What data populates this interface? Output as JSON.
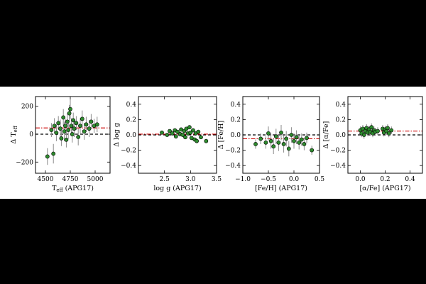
{
  "colors": {
    "background": "#000000",
    "figure_bg": "#ffffff",
    "marker_fill": "#2e8b2e",
    "marker_edge": "#000000",
    "errorbar": "#8a8a8a",
    "zero_line": "#000000",
    "mean_line": "#cc0000"
  },
  "chart_data": [
    {
      "type": "scatter",
      "id": "teff",
      "xlabel": "T_eff (APG17)",
      "ylabel": "Δ T_eff",
      "xlim": [
        4400,
        5150
      ],
      "ylim": [
        -280,
        270
      ],
      "xticks": [
        4500,
        4750,
        5000
      ],
      "xtick_labels": [
        "4500",
        "4750",
        "5000"
      ],
      "yticks": [
        -200,
        0,
        200
      ],
      "ytick_labels": [
        "−200",
        "0",
        "200"
      ],
      "zero_line": 0,
      "mean_offset": 45,
      "points": [
        {
          "x": 4520,
          "y": -160,
          "err": 60
        },
        {
          "x": 4580,
          "y": -140,
          "err": 70
        },
        {
          "x": 4560,
          "y": 30,
          "err": 50
        },
        {
          "x": 4590,
          "y": 60,
          "err": 55
        },
        {
          "x": 4610,
          "y": 10,
          "err": 60
        },
        {
          "x": 4630,
          "y": 80,
          "err": 50
        },
        {
          "x": 4650,
          "y": 40,
          "err": 65
        },
        {
          "x": 4660,
          "y": -30,
          "err": 55
        },
        {
          "x": 4680,
          "y": 120,
          "err": 60
        },
        {
          "x": 4690,
          "y": 20,
          "err": 70
        },
        {
          "x": 4700,
          "y": 60,
          "err": 50
        },
        {
          "x": 4710,
          "y": -40,
          "err": 55
        },
        {
          "x": 4720,
          "y": 90,
          "err": 60
        },
        {
          "x": 4730,
          "y": 30,
          "err": 65
        },
        {
          "x": 4740,
          "y": 150,
          "err": 60
        },
        {
          "x": 4750,
          "y": 180,
          "err": 70
        },
        {
          "x": 4760,
          "y": 60,
          "err": 55
        },
        {
          "x": 4770,
          "y": 0,
          "err": 60
        },
        {
          "x": 4780,
          "y": 100,
          "err": 55
        },
        {
          "x": 4790,
          "y": 40,
          "err": 60
        },
        {
          "x": 4810,
          "y": 80,
          "err": 50
        },
        {
          "x": 4830,
          "y": -20,
          "err": 60
        },
        {
          "x": 4850,
          "y": 60,
          "err": 55
        },
        {
          "x": 4870,
          "y": 110,
          "err": 60
        },
        {
          "x": 4890,
          "y": 20,
          "err": 60
        },
        {
          "x": 4910,
          "y": 70,
          "err": 55
        },
        {
          "x": 4940,
          "y": 40,
          "err": 60
        },
        {
          "x": 4960,
          "y": 90,
          "err": 55
        },
        {
          "x": 4990,
          "y": 60,
          "err": 50
        },
        {
          "x": 5020,
          "y": 70,
          "err": 55
        }
      ]
    },
    {
      "type": "scatter",
      "id": "logg",
      "xlabel": "log g (APG17)",
      "ylabel": "Δ log g",
      "xlim": [
        2.0,
        3.5
      ],
      "ylim": [
        -0.5,
        0.5
      ],
      "xticks": [
        2.5,
        3.0,
        3.5
      ],
      "xtick_labels": [
        "2.5",
        "3.0",
        "3.5"
      ],
      "yticks": [
        -0.4,
        -0.2,
        0.0,
        0.2,
        0.4
      ],
      "ytick_labels": [
        "−0.4",
        "−0.2",
        "0.0",
        "0.2",
        "0.4"
      ],
      "zero_line": 0,
      "mean_offset": 0.01,
      "points": [
        {
          "x": 2.45,
          "y": 0.03,
          "err": 0.02
        },
        {
          "x": 2.55,
          "y": 0.0,
          "err": 0.02
        },
        {
          "x": 2.6,
          "y": 0.05,
          "err": 0.02
        },
        {
          "x": 2.65,
          "y": 0.02,
          "err": 0.02
        },
        {
          "x": 2.7,
          "y": 0.06,
          "err": 0.02
        },
        {
          "x": 2.72,
          "y": -0.02,
          "err": 0.02
        },
        {
          "x": 2.75,
          "y": 0.04,
          "err": 0.02
        },
        {
          "x": 2.8,
          "y": 0.01,
          "err": 0.02
        },
        {
          "x": 2.82,
          "y": 0.07,
          "err": 0.02
        },
        {
          "x": 2.85,
          "y": 0.0,
          "err": 0.02
        },
        {
          "x": 2.88,
          "y": 0.05,
          "err": 0.02
        },
        {
          "x": 2.9,
          "y": -0.03,
          "err": 0.02
        },
        {
          "x": 2.92,
          "y": 0.08,
          "err": 0.02
        },
        {
          "x": 2.95,
          "y": 0.02,
          "err": 0.02
        },
        {
          "x": 2.98,
          "y": 0.1,
          "err": 0.02
        },
        {
          "x": 3.0,
          "y": 0.03,
          "err": 0.02
        },
        {
          "x": 3.02,
          "y": -0.04,
          "err": 0.02
        },
        {
          "x": 3.05,
          "y": 0.06,
          "err": 0.02
        },
        {
          "x": 3.08,
          "y": -0.06,
          "err": 0.02
        },
        {
          "x": 3.1,
          "y": 0.02,
          "err": 0.02
        },
        {
          "x": 3.12,
          "y": -0.08,
          "err": 0.02
        },
        {
          "x": 3.15,
          "y": 0.04,
          "err": 0.02
        },
        {
          "x": 3.2,
          "y": -0.03,
          "err": 0.02
        },
        {
          "x": 3.3,
          "y": -0.08,
          "err": 0.02
        }
      ]
    },
    {
      "type": "scatter",
      "id": "feh",
      "xlabel": "[Fe/H] (APG17)",
      "ylabel": "Δ [Fe/H]",
      "xlim": [
        -1.0,
        0.5
      ],
      "ylim": [
        -0.5,
        0.5
      ],
      "xticks": [
        -1.0,
        -0.5,
        0.0,
        0.5
      ],
      "xtick_labels": [
        "−1.0",
        "−0.5",
        "0.0",
        "0.5"
      ],
      "yticks": [
        -0.4,
        -0.2,
        0.0,
        0.2,
        0.4
      ],
      "ytick_labels": [
        "−0.4",
        "−0.2",
        "0.0",
        "0.2",
        "0.4"
      ],
      "zero_line": 0,
      "mean_offset": -0.05,
      "points": [
        {
          "x": -0.75,
          "y": -0.12,
          "err": 0.06
        },
        {
          "x": -0.65,
          "y": -0.05,
          "err": 0.07
        },
        {
          "x": -0.55,
          "y": -0.1,
          "err": 0.08
        },
        {
          "x": -0.5,
          "y": 0.02,
          "err": 0.09
        },
        {
          "x": -0.45,
          "y": -0.08,
          "err": 0.1
        },
        {
          "x": -0.4,
          "y": -0.15,
          "err": 0.1
        },
        {
          "x": -0.35,
          "y": -0.02,
          "err": 0.1
        },
        {
          "x": -0.3,
          "y": -0.1,
          "err": 0.11
        },
        {
          "x": -0.25,
          "y": 0.03,
          "err": 0.1
        },
        {
          "x": -0.2,
          "y": -0.12,
          "err": 0.11
        },
        {
          "x": -0.15,
          "y": -0.05,
          "err": 0.1
        },
        {
          "x": -0.1,
          "y": -0.18,
          "err": 0.1
        },
        {
          "x": -0.05,
          "y": 0.0,
          "err": 0.1
        },
        {
          "x": 0.0,
          "y": -0.08,
          "err": 0.1
        },
        {
          "x": 0.05,
          "y": -0.03,
          "err": 0.09
        },
        {
          "x": 0.1,
          "y": -0.1,
          "err": 0.09
        },
        {
          "x": 0.15,
          "y": -0.06,
          "err": 0.08
        },
        {
          "x": 0.2,
          "y": -0.12,
          "err": 0.08
        },
        {
          "x": 0.25,
          "y": -0.04,
          "err": 0.07
        },
        {
          "x": 0.35,
          "y": -0.2,
          "err": 0.06
        }
      ]
    },
    {
      "type": "scatter",
      "id": "alphafe",
      "xlabel": "[α/Fe] (APG17)",
      "ylabel": "Δ [α/Fe]",
      "xlim": [
        -0.1,
        0.5
      ],
      "ylim": [
        -0.5,
        0.5
      ],
      "xticks": [
        0.0,
        0.2,
        0.4
      ],
      "xtick_labels": [
        "0.0",
        "0.2",
        "0.4"
      ],
      "yticks": [
        -0.4,
        -0.2,
        0.0,
        0.2,
        0.4
      ],
      "ytick_labels": [
        "−0.4",
        "−0.2",
        "0.0",
        "0.2",
        "0.4"
      ],
      "zero_line": 0,
      "mean_offset": 0.05,
      "points": [
        {
          "x": 0.0,
          "y": 0.06,
          "err": 0.05
        },
        {
          "x": 0.01,
          "y": 0.02,
          "err": 0.05
        },
        {
          "x": 0.02,
          "y": 0.08,
          "err": 0.05
        },
        {
          "x": 0.03,
          "y": 0.0,
          "err": 0.05
        },
        {
          "x": 0.04,
          "y": 0.05,
          "err": 0.05
        },
        {
          "x": 0.05,
          "y": 0.09,
          "err": 0.05
        },
        {
          "x": 0.06,
          "y": 0.03,
          "err": 0.05
        },
        {
          "x": 0.07,
          "y": 0.07,
          "err": 0.05
        },
        {
          "x": 0.08,
          "y": 0.04,
          "err": 0.05
        },
        {
          "x": 0.09,
          "y": 0.1,
          "err": 0.05
        },
        {
          "x": 0.1,
          "y": 0.02,
          "err": 0.05
        },
        {
          "x": 0.11,
          "y": 0.06,
          "err": 0.05
        },
        {
          "x": 0.12,
          "y": 0.04,
          "err": 0.05
        },
        {
          "x": 0.14,
          "y": 0.05,
          "err": 0.05
        },
        {
          "x": 0.18,
          "y": 0.08,
          "err": 0.05
        },
        {
          "x": 0.19,
          "y": 0.03,
          "err": 0.05
        },
        {
          "x": 0.2,
          "y": 0.07,
          "err": 0.05
        },
        {
          "x": 0.21,
          "y": 0.05,
          "err": 0.05
        },
        {
          "x": 0.22,
          "y": 0.09,
          "err": 0.05
        },
        {
          "x": 0.23,
          "y": 0.02,
          "err": 0.05
        },
        {
          "x": 0.25,
          "y": 0.06,
          "err": 0.05
        }
      ]
    }
  ]
}
